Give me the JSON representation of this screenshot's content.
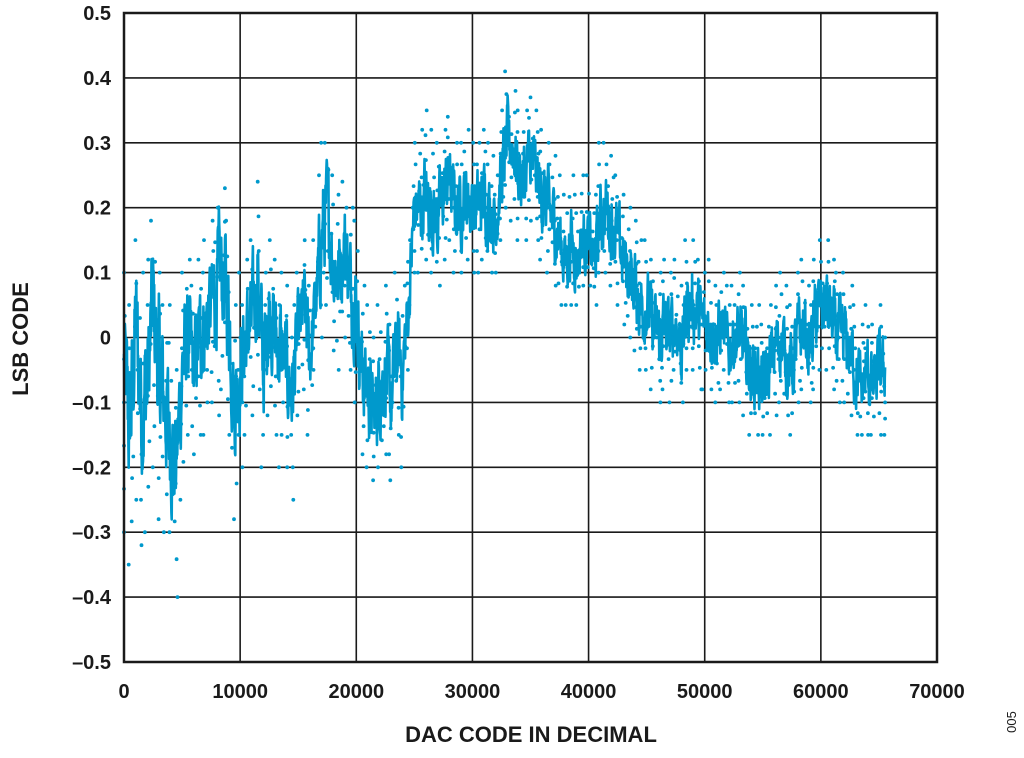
{
  "chart_data": {
    "type": "scatter",
    "title": "",
    "xlabel": "DAC CODE IN DECIMAL",
    "ylabel": "LSB CODE",
    "xlim": [
      0,
      70000
    ],
    "ylim": [
      -0.5,
      0.5
    ],
    "xticks": [
      0,
      10000,
      20000,
      30000,
      40000,
      50000,
      60000,
      70000
    ],
    "xtick_labels": [
      "0",
      "10000",
      "20000",
      "30000",
      "40000",
      "50000",
      "60000",
      "70000"
    ],
    "yticks": [
      0.5,
      0.4,
      0.3,
      0.2,
      0.1,
      0,
      -0.1,
      -0.2,
      -0.3,
      -0.4,
      -0.5
    ],
    "ytick_labels": [
      "0.5",
      "0.4",
      "0.3",
      "0.2",
      "0.1",
      "0",
      "–0.1",
      "–0.2",
      "–0.3",
      "–0.4",
      "–0.5"
    ],
    "grid": true,
    "legend": "none",
    "series_color": "#0099cc",
    "series": [
      {
        "name": "",
        "x_min": 0,
        "x_max": 65535,
        "x": [
          0,
          500,
          1000,
          1500,
          2000,
          2500,
          3000,
          3500,
          4000,
          4500,
          5000,
          5500,
          6000,
          6500,
          7000,
          7500,
          8000,
          8500,
          9000,
          9500,
          10000,
          10500,
          11000,
          11500,
          12000,
          12500,
          13000,
          13500,
          14000,
          14500,
          15000,
          15500,
          16000,
          16500,
          17000,
          17500,
          18000,
          18500,
          19000,
          19500,
          20000,
          20500,
          21000,
          21500,
          22000,
          22500,
          23000,
          23500,
          24000,
          24500,
          25000,
          25500,
          26000,
          26500,
          27000,
          27500,
          28000,
          28500,
          29000,
          29500,
          30000,
          30500,
          31000,
          31500,
          32000,
          32500,
          33000,
          33500,
          34000,
          34500,
          35000,
          35500,
          36000,
          36500,
          37000,
          37500,
          38000,
          38500,
          39000,
          39500,
          40000,
          40500,
          41000,
          41500,
          42000,
          42500,
          43000,
          43500,
          44000,
          44500,
          45000,
          45500,
          46000,
          46500,
          47000,
          47500,
          48000,
          48500,
          49000,
          49500,
          50000,
          50500,
          51000,
          51500,
          52000,
          52500,
          53000,
          53500,
          54000,
          54500,
          55000,
          55500,
          56000,
          56500,
          57000,
          57500,
          58000,
          58500,
          59000,
          59500,
          60000,
          60500,
          61000,
          61500,
          62000,
          62500,
          63000,
          63500,
          64000,
          64500,
          65000,
          65535
        ],
        "y_mean": [
          -0.05,
          -0.15,
          0.02,
          -0.1,
          -0.08,
          0.05,
          -0.05,
          -0.1,
          -0.15,
          -0.2,
          -0.05,
          0.0,
          -0.05,
          0.0,
          0.02,
          0.05,
          0.08,
          0.1,
          0.05,
          -0.1,
          -0.05,
          0.0,
          0.02,
          0.1,
          -0.05,
          0.05,
          0.0,
          -0.02,
          -0.05,
          -0.08,
          0.0,
          0.05,
          -0.03,
          0.05,
          0.15,
          0.2,
          0.12,
          0.1,
          0.15,
          0.08,
          0.05,
          -0.05,
          -0.08,
          -0.12,
          -0.08,
          -0.05,
          -0.1,
          -0.02,
          -0.05,
          0.05,
          0.2,
          0.2,
          0.22,
          0.2,
          0.18,
          0.22,
          0.25,
          0.2,
          0.2,
          0.22,
          0.2,
          0.2,
          0.22,
          0.2,
          0.18,
          0.25,
          0.3,
          0.3,
          0.25,
          0.25,
          0.28,
          0.25,
          0.22,
          0.2,
          0.18,
          0.15,
          0.12,
          0.15,
          0.12,
          0.15,
          0.15,
          0.12,
          0.18,
          0.2,
          0.18,
          0.15,
          0.12,
          0.1,
          0.08,
          0.05,
          0.05,
          0.02,
          0.0,
          0.02,
          0.0,
          0.03,
          -0.02,
          0.05,
          0.05,
          0.03,
          0.02,
          0.02,
          0.0,
          0.02,
          -0.02,
          0.0,
          0.0,
          -0.02,
          -0.05,
          -0.05,
          -0.08,
          -0.05,
          -0.02,
          0.0,
          -0.03,
          -0.05,
          0.0,
          0.02,
          -0.02,
          0.03,
          0.05,
          0.05,
          0.02,
          0.0,
          0.0,
          -0.02,
          -0.05,
          -0.08,
          -0.05,
          -0.08,
          -0.05,
          -0.05
        ],
        "y_min": [
          -0.3,
          -0.35,
          -0.25,
          -0.32,
          -0.3,
          -0.2,
          -0.28,
          -0.3,
          -0.3,
          -0.4,
          -0.25,
          -0.15,
          -0.18,
          -0.15,
          -0.15,
          -0.1,
          -0.12,
          -0.08,
          -0.15,
          -0.28,
          -0.2,
          -0.15,
          -0.12,
          -0.08,
          -0.2,
          -0.12,
          -0.15,
          -0.2,
          -0.2,
          -0.25,
          -0.12,
          -0.08,
          -0.15,
          -0.05,
          0.0,
          0.05,
          -0.02,
          -0.05,
          0.0,
          -0.05,
          -0.1,
          -0.18,
          -0.2,
          -0.22,
          -0.2,
          -0.18,
          -0.22,
          -0.15,
          -0.2,
          -0.05,
          0.1,
          0.1,
          0.12,
          0.1,
          0.08,
          0.12,
          0.15,
          0.1,
          0.1,
          0.12,
          0.1,
          0.1,
          0.12,
          0.1,
          0.1,
          0.15,
          0.2,
          0.18,
          0.15,
          0.15,
          0.18,
          0.15,
          0.12,
          0.1,
          0.08,
          0.05,
          0.05,
          0.05,
          0.05,
          0.08,
          0.08,
          0.05,
          0.1,
          0.1,
          0.08,
          0.05,
          0.02,
          0.0,
          -0.02,
          -0.05,
          -0.05,
          -0.08,
          -0.1,
          -0.08,
          -0.1,
          -0.05,
          -0.1,
          -0.05,
          -0.05,
          -0.08,
          -0.08,
          -0.08,
          -0.1,
          -0.08,
          -0.1,
          -0.1,
          -0.1,
          -0.12,
          -0.15,
          -0.15,
          -0.15,
          -0.15,
          -0.12,
          -0.1,
          -0.12,
          -0.15,
          -0.1,
          -0.08,
          -0.1,
          -0.08,
          -0.05,
          -0.05,
          -0.08,
          -0.1,
          -0.1,
          -0.12,
          -0.15,
          -0.15,
          -0.15,
          -0.15,
          -0.15,
          -0.15
        ],
        "y_max": [
          0.1,
          0.05,
          0.15,
          0.1,
          0.12,
          0.18,
          0.1,
          0.05,
          0.05,
          -0.05,
          0.1,
          0.12,
          0.08,
          0.12,
          0.15,
          0.18,
          0.2,
          0.23,
          0.18,
          0.05,
          0.1,
          0.12,
          0.15,
          0.24,
          0.1,
          0.15,
          0.12,
          0.1,
          0.08,
          0.05,
          0.1,
          0.15,
          0.08,
          0.15,
          0.3,
          0.3,
          0.25,
          0.22,
          0.24,
          0.2,
          0.18,
          0.08,
          0.05,
          0.0,
          0.05,
          0.08,
          0.02,
          0.1,
          0.08,
          0.15,
          0.3,
          0.32,
          0.35,
          0.32,
          0.3,
          0.32,
          0.34,
          0.3,
          0.3,
          0.32,
          0.3,
          0.3,
          0.32,
          0.3,
          0.28,
          0.35,
          0.41,
          0.38,
          0.35,
          0.35,
          0.37,
          0.35,
          0.32,
          0.3,
          0.28,
          0.25,
          0.22,
          0.25,
          0.22,
          0.25,
          0.25,
          0.22,
          0.3,
          0.3,
          0.28,
          0.25,
          0.22,
          0.2,
          0.18,
          0.15,
          0.15,
          0.12,
          0.1,
          0.12,
          0.1,
          0.12,
          0.08,
          0.15,
          0.15,
          0.12,
          0.1,
          0.12,
          0.08,
          0.1,
          0.08,
          0.08,
          0.1,
          0.08,
          0.05,
          0.05,
          0.02,
          0.05,
          0.08,
          0.1,
          0.08,
          0.05,
          0.1,
          0.12,
          0.08,
          0.12,
          0.15,
          0.15,
          0.12,
          0.1,
          0.1,
          0.08,
          0.05,
          0.02,
          0.05,
          0.02,
          0.05,
          0.0
        ]
      }
    ]
  },
  "figure_id": "005"
}
